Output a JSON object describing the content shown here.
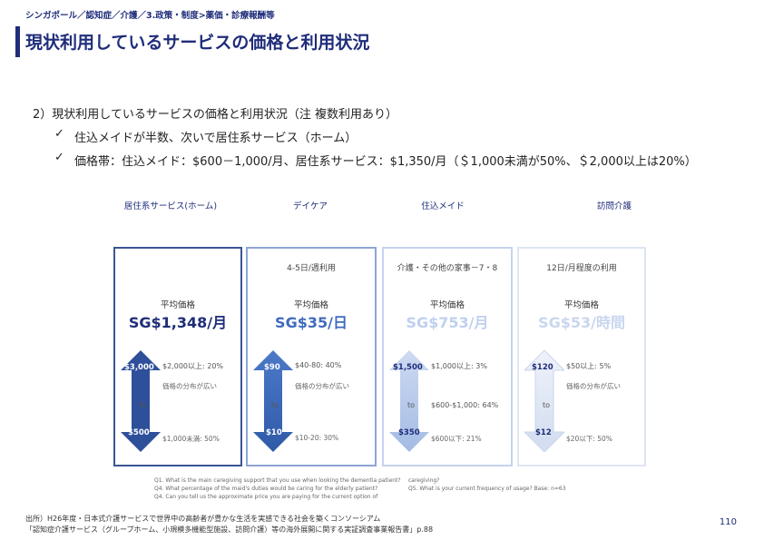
{
  "header": {
    "breadcrumb": "シンガポール／認知症／介護／3.政策・制度>薬価・診療報酬等",
    "title": "現状利用しているサービスの価格と利用状況"
  },
  "body": {
    "heading": "2）現状利用しているサービスの価格と利用状況（注 複数利用あり）",
    "bullets": [
      {
        "check": "✓",
        "text": "住込メイドが半数、次いで居住系サービス（ホーム）"
      },
      {
        "check": "✓",
        "text": "価格帯：住込メイド：$600－1,000/月、居住系サービス：$1,350/月（＄1,000未満が50%、＄2,000以上は20%）"
      }
    ]
  },
  "columns": [
    {
      "label": "居住系サービス(ホーム)",
      "subtitle": "",
      "avg_label": "平均価格",
      "avg_value": "SG$1,348/月",
      "top_price": "$3,000",
      "bottom_price": "$500",
      "to": "To",
      "note_top": "$2,000以上: 20%",
      "note_mid": "価格の分布が広い",
      "note_mid2": "",
      "note_bottom": "$1,000未満: 50%",
      "arrow_color": "#2e4f9a"
    },
    {
      "label": "デイケア",
      "subtitle": "4-5日/週利用",
      "avg_label": "平均価格",
      "avg_value": "SG$35/日",
      "top_price": "$90",
      "bottom_price": "$10",
      "to": "to",
      "note_top": "$40-80: 40%",
      "note_mid": "価格の分布が広い",
      "note_mid2": "",
      "note_bottom": "$10-20: 30%",
      "arrow_color": "#4b79c8"
    },
    {
      "label": "住込メイド",
      "subtitle": "介護・その他の家事－7・8",
      "avg_label": "平均価格",
      "avg_value": "SG$753/月",
      "top_price": "$1,500",
      "bottom_price": "$350",
      "to": "to",
      "note_top": "$1,000以上: 3%",
      "note_mid": "",
      "note_mid2": "$600-$1,000: 64%",
      "note_bottom": "$600以下: 21%",
      "arrow_color": "#b3c7ea"
    },
    {
      "label": "訪問介護",
      "subtitle": "12日/月程度の利用",
      "avg_label": "平均価格",
      "avg_value": "SG$53/時間",
      "top_price": "$120",
      "bottom_price": "$12",
      "to": "to",
      "note_top": "$50以上: 5%",
      "note_mid": "価格の分布が広い",
      "note_mid2": "",
      "note_bottom": "$20以下: 50%",
      "arrow_color": "#dbe4f4"
    }
  ],
  "footnotes": [
    "Q1. What is the main caregiving support that you use when looking the dementia patient?",
    "Q4. What percentage of the maid's duties would be caring for the elderly patient?",
    "Q4. Can you tell us the approximate price you are paying for the current option of"
  ],
  "footnotes_right": [
    "caregiving?",
    "Q5. What is your current frequency of usage? Base: n=63"
  ],
  "source": {
    "line1": "出所）H26年度・日本式介護サービスで世界中の高齢者が豊かな生活を実感できる社会を築くコンソーシアム",
    "line2": "「認知症介護サービス（グループホーム、小規模多機能型施設、訪問介護）等の海外展開に関する実証調査事業報告書」p.88"
  },
  "page_number": "110"
}
